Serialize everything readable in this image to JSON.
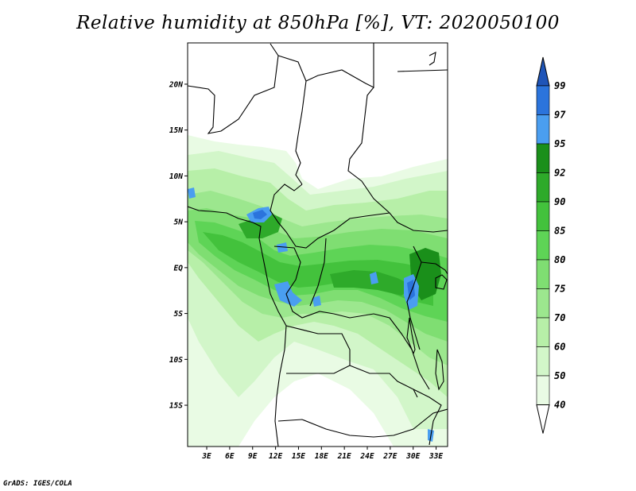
{
  "title": "Relative humidity at 850hPa [%], VT: 2020050100",
  "credit": "GrADS: IGES/COLA",
  "axes": {
    "lat_ticks": [
      "20N",
      "15N",
      "10N",
      "5N",
      "EQ",
      "5S",
      "10S",
      "15S"
    ],
    "lat_values": [
      20,
      15,
      10,
      5,
      0,
      -5,
      -10,
      -15
    ],
    "lon_ticks": [
      "3E",
      "6E",
      "9E",
      "12E",
      "15E",
      "18E",
      "21E",
      "24E",
      "27E",
      "30E",
      "33E"
    ],
    "lon_values": [
      3,
      6,
      9,
      12,
      15,
      18,
      21,
      24,
      27,
      30,
      33
    ],
    "lon_range": [
      0.5,
      34.5
    ],
    "lat_range": [
      -19.5,
      24.5
    ]
  },
  "colorbar": {
    "levels": [
      "40",
      "50",
      "60",
      "70",
      "75",
      "80",
      "85",
      "90",
      "92",
      "95",
      "97",
      "99"
    ],
    "colors": [
      "#ffffff",
      "#e9fbe4",
      "#d2f6c9",
      "#b7efa8",
      "#9ce78e",
      "#7fde72",
      "#5ed456",
      "#43c23c",
      "#2eaa2a",
      "#1a8f1a",
      "#4a9ef0",
      "#2b74dc",
      "#1f55b8"
    ]
  },
  "legend": {
    "bin_colors": [
      "#e9fbe4",
      "#d2f6c9",
      "#b7efa8",
      "#9ce78e",
      "#7fde72",
      "#5ed456",
      "#43c23c",
      "#2eaa2a",
      "#1a8f1a"
    ],
    "blue_colors": [
      "#4a9ef0",
      "#2b74dc",
      "#1f55b8"
    ]
  }
}
